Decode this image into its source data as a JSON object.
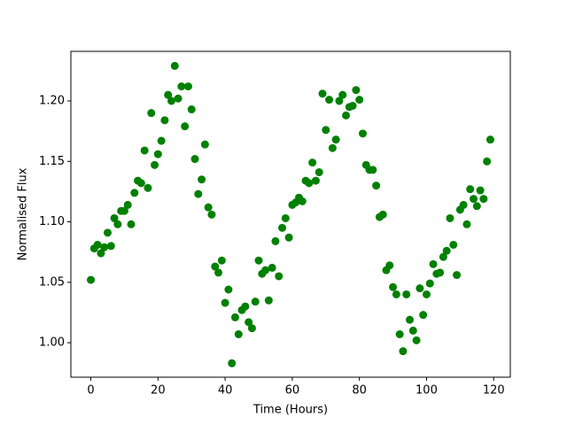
{
  "chart_data": {
    "type": "scatter",
    "xlabel": "Time (Hours)",
    "ylabel": "Normalised Flux",
    "color": "#008000",
    "x": [
      0,
      1,
      2,
      3,
      4,
      5,
      6,
      7,
      8,
      9,
      10,
      11,
      12,
      13,
      14,
      15,
      16,
      17,
      18,
      19,
      20,
      21,
      22,
      23,
      24,
      25,
      26,
      27,
      28,
      29,
      30,
      31,
      32,
      33,
      34,
      35,
      36,
      37,
      38,
      39,
      40,
      41,
      42,
      43,
      44,
      45,
      46,
      47,
      48,
      49,
      50,
      51,
      52,
      53,
      54,
      55,
      56,
      57,
      58,
      59,
      60,
      61,
      62,
      63,
      64,
      65,
      66,
      67,
      68,
      69,
      70,
      71,
      72,
      73,
      74,
      75,
      76,
      77,
      78,
      79,
      80,
      81,
      82,
      83,
      84,
      85,
      86,
      87,
      88,
      89,
      90,
      91,
      92,
      93,
      94,
      95,
      96,
      97,
      98,
      99,
      100,
      101,
      102,
      103,
      104,
      105,
      106,
      107,
      108,
      109,
      110,
      111,
      112,
      113,
      114,
      115,
      116,
      117,
      118,
      119
    ],
    "values": [
      1.052,
      1.078,
      1.081,
      1.074,
      1.079,
      1.091,
      1.08,
      1.103,
      1.098,
      1.109,
      1.109,
      1.114,
      1.098,
      1.124,
      1.134,
      1.132,
      1.159,
      1.128,
      1.19,
      1.147,
      1.156,
      1.167,
      1.184,
      1.205,
      1.2,
      1.229,
      1.202,
      1.212,
      1.179,
      1.212,
      1.193,
      1.152,
      1.123,
      1.135,
      1.164,
      1.112,
      1.106,
      1.063,
      1.058,
      1.068,
      1.033,
      1.044,
      0.983,
      1.021,
      1.007,
      1.027,
      1.03,
      1.017,
      1.012,
      1.034,
      1.068,
      1.057,
      1.06,
      1.035,
      1.062,
      1.084,
      1.055,
      1.095,
      1.103,
      1.087,
      1.114,
      1.116,
      1.12,
      1.117,
      1.134,
      1.132,
      1.149,
      1.134,
      1.141,
      1.206,
      1.176,
      1.201,
      1.161,
      1.168,
      1.2,
      1.205,
      1.188,
      1.195,
      1.196,
      1.209,
      1.201,
      1.173,
      1.147,
      1.143,
      1.143,
      1.13,
      1.104,
      1.106,
      1.06,
      1.064,
      1.046,
      1.04,
      1.007,
      0.993,
      1.04,
      1.019,
      1.01,
      1.002,
      1.045,
      1.023,
      1.04,
      1.049,
      1.065,
      1.057,
      1.058,
      1.071,
      1.076,
      1.103,
      1.081,
      1.056,
      1.11,
      1.114,
      1.098,
      1.127,
      1.119,
      1.113,
      1.126,
      1.119,
      1.15,
      1.168
    ],
    "xlim": [
      -5.95,
      124.95
    ],
    "xticks": [
      0,
      20,
      40,
      60,
      80,
      100,
      120
    ],
    "ylim": [
      0.9715,
      1.241
    ],
    "yticks": [
      {
        "value": 1,
        "label": "1.00"
      },
      {
        "value": 1.05,
        "label": "1.05"
      },
      {
        "value": 1.1,
        "label": "1.10"
      },
      {
        "value": 1.15,
        "label": "1.15"
      },
      {
        "value": 1.2,
        "label": "1.20"
      }
    ]
  }
}
